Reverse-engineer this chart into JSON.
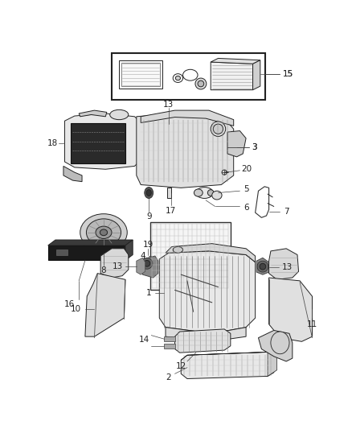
{
  "bg_color": "#ffffff",
  "line_color": "#222222",
  "label_color": "#222222",
  "fig_width": 4.38,
  "fig_height": 5.33,
  "dpi": 100,
  "lw": 0.7,
  "font_size": 7.5
}
